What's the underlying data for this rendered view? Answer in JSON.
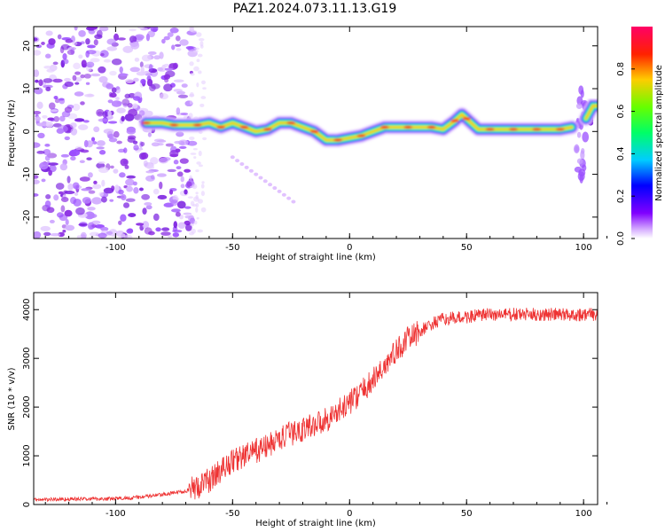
{
  "figure": {
    "title": "PAZ1.2024.073.11.13.G19"
  },
  "chart_data": [
    {
      "type": "heatmap",
      "xlabel": "Height of straight line (km)",
      "ylabel": "Frequency (Hz)",
      "xlim": [
        -135,
        106
      ],
      "ylim": [
        -25,
        24.5
      ],
      "xticks": [
        -100,
        -50,
        0,
        50,
        100
      ],
      "yticks": [
        -20,
        -10,
        0,
        10,
        20
      ],
      "grid": false,
      "ridge": {
        "x": [
          -87,
          -80,
          -75,
          -70,
          -65,
          -60,
          -55,
          -50,
          -45,
          -40,
          -35,
          -30,
          -25,
          -20,
          -15,
          -10,
          -5,
          0,
          5,
          10,
          15,
          20,
          25,
          30,
          35,
          40,
          45,
          48,
          50,
          55,
          60,
          65,
          70,
          75,
          80,
          85,
          90,
          95
        ],
        "y": [
          2,
          2,
          1.5,
          1.5,
          1.5,
          2,
          1,
          2,
          1,
          0,
          0.5,
          2,
          2,
          1,
          0,
          -2,
          -2,
          -1.5,
          -1,
          0,
          1,
          1,
          1,
          1,
          1,
          0.5,
          2.5,
          4,
          3,
          0.5,
          0.5,
          0.5,
          0.5,
          0.5,
          0.5,
          0.5,
          0.5,
          1
        ]
      },
      "colorbar": {
        "label": "Normalized spectral amplitude",
        "ticks": [
          "0.0",
          "0.2",
          "0.4",
          "0.6",
          "0.8"
        ],
        "range": [
          0,
          1
        ]
      }
    },
    {
      "type": "line",
      "xlabel": "Height of straight line (km)",
      "ylabel": "SNR (10 * v/v)",
      "xlim": [
        -135,
        106
      ],
      "ylim": [
        0,
        4350
      ],
      "xticks": [
        -100,
        -50,
        0,
        50,
        100
      ],
      "yticks": [
        0,
        1000,
        2000,
        3000,
        4000
      ],
      "grid": false,
      "color": "#ee3333",
      "x": [
        -135,
        -120,
        -100,
        -90,
        -80,
        -70,
        -65,
        -60,
        -55,
        -50,
        -45,
        -40,
        -35,
        -30,
        -25,
        -20,
        -15,
        -10,
        -5,
        0,
        5,
        10,
        15,
        20,
        25,
        30,
        35,
        40,
        50,
        60,
        70,
        80,
        90,
        100,
        106
      ],
      "y": [
        100,
        110,
        120,
        150,
        200,
        280,
        360,
        500,
        700,
        900,
        1000,
        1100,
        1200,
        1350,
        1450,
        1550,
        1650,
        1750,
        1900,
        2100,
        2300,
        2550,
        2850,
        3150,
        3400,
        3550,
        3700,
        3800,
        3850,
        3900,
        3900,
        3900,
        3900,
        3900,
        3900
      ]
    }
  ]
}
